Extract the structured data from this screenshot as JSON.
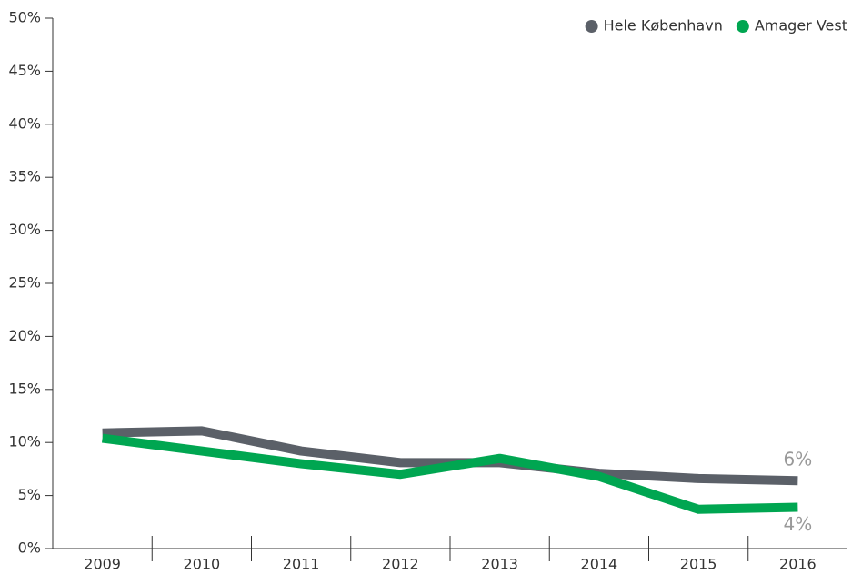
{
  "chart_data": {
    "type": "line",
    "categories": [
      "2009",
      "2010",
      "2011",
      "2012",
      "2013",
      "2014",
      "2015",
      "2016"
    ],
    "series": [
      {
        "name": "Hele København",
        "color": "#5b6068",
        "values": [
          10.9,
          11.1,
          9.2,
          8.1,
          8.1,
          7.1,
          6.6,
          6.4
        ],
        "value_labels": [
          null,
          null,
          null,
          null,
          null,
          null,
          null,
          "6%"
        ]
      },
      {
        "name": "Amager Vest",
        "color": "#00a651",
        "values": [
          10.4,
          9.2,
          8.0,
          7.0,
          8.5,
          6.8,
          3.7,
          3.9
        ],
        "value_labels": [
          null,
          null,
          null,
          null,
          null,
          null,
          null,
          "4%"
        ]
      }
    ],
    "ylim": [
      0,
      50
    ],
    "yticks": [
      {
        "value": 0,
        "label": "0%"
      },
      {
        "value": 5,
        "label": "5%"
      },
      {
        "value": 10,
        "label": "10%"
      },
      {
        "value": 15,
        "label": "15%"
      },
      {
        "value": 20,
        "label": "20%"
      },
      {
        "value": 25,
        "label": "25%"
      },
      {
        "value": 30,
        "label": "30%"
      },
      {
        "value": 35,
        "label": "35%"
      },
      {
        "value": 40,
        "label": "40%"
      },
      {
        "value": 45,
        "label": "45%"
      },
      {
        "value": 50,
        "label": "50%"
      }
    ],
    "grid": false,
    "legend": "top-right"
  }
}
